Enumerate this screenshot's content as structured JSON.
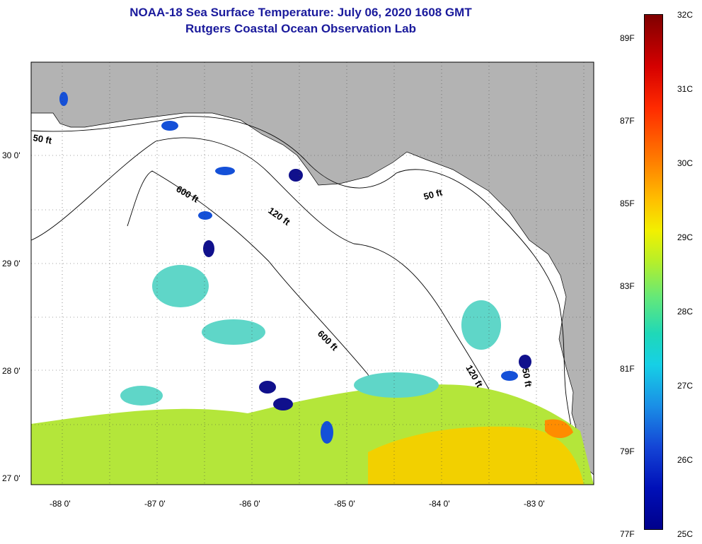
{
  "title_line1": "NOAA-18 Sea Surface Temperature:  July 06, 2020 1608 GMT",
  "title_line2": "Rutgers Coastal Ocean Observation Lab",
  "axes": {
    "lon_labels": [
      "-88 0'",
      "-87 0'",
      "-86 0'",
      "-85 0'",
      "-84 0'",
      "-83 0'"
    ],
    "lat_labels": [
      "30 0'",
      "29 0'",
      "28 0'",
      "27 0'"
    ]
  },
  "contour_labels": {
    "c50_west": "50 ft",
    "c600_north": "600 ft",
    "c120_north": "120 ft",
    "c50_east": "50 ft",
    "c600_south": "600 ft",
    "c120_south": "120 ft",
    "c50_south": "50 ft"
  },
  "colorbar": {
    "celsius": [
      "32C",
      "31C",
      "30C",
      "29C",
      "28C",
      "27C",
      "26C",
      "25C"
    ],
    "fahrenheit": [
      "89F",
      "87F",
      "85F",
      "83F",
      "81F",
      "79F",
      "77F"
    ]
  },
  "colors": {
    "land": "#b3b3b3",
    "title": "#1a1a9c",
    "warm": "#f2d000",
    "mid": "#b4e63a",
    "cool": "#5fd6c8",
    "cold": "#1450d8",
    "coldest": "#10108c"
  }
}
